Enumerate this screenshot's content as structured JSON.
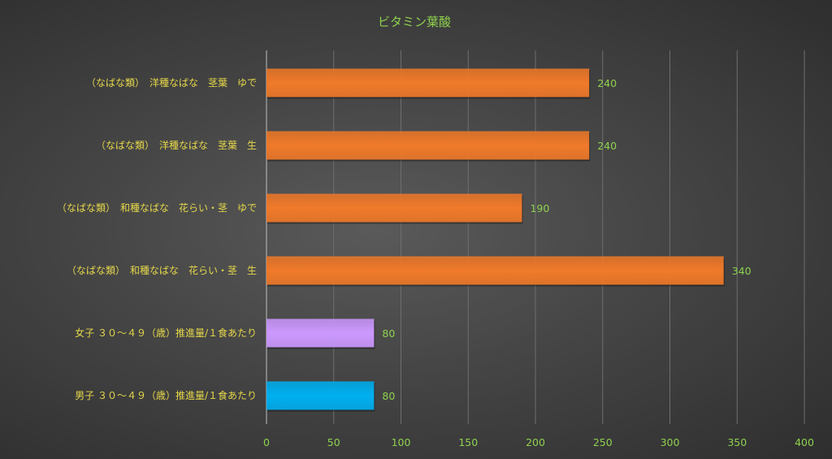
{
  "chart_data": {
    "type": "bar",
    "orientation": "horizontal",
    "title": "ビタミン葉酸",
    "categories": [
      "（なばな類）　洋種なばな　茎葉　ゆで",
      "（なばな類）　洋種なばな　茎葉　生",
      "（なばな類）　和種なばな　花らい・茎　ゆで",
      "（なばな類）　和種なばな　花らい・茎　生",
      "女子 ３０～４９（歳）推進量/１食あたり",
      "男子 ３０～４９（歳）推進量/１食あたり"
    ],
    "values": [
      240,
      240,
      190,
      340,
      80,
      80
    ],
    "value_labels": [
      "240",
      "240",
      "190",
      "340",
      "80",
      "80"
    ],
    "bar_colors": [
      "#f07a2a",
      "#f07a2a",
      "#f07a2a",
      "#f07a2a",
      "#cc99ff",
      "#00b0f0"
    ],
    "xlim": [
      0,
      400
    ],
    "xticks": [
      "0",
      "50",
      "100",
      "150",
      "200",
      "250",
      "300",
      "350",
      "400"
    ],
    "grid": true,
    "legend": "none",
    "colors": {
      "title": "#8fd14f",
      "category_label": "#e6d84a",
      "value_label": "#8fd14f",
      "tick_label": "#8fd14f",
      "gridline": "#6e6e6e",
      "axis": "#bfbfbf"
    }
  }
}
